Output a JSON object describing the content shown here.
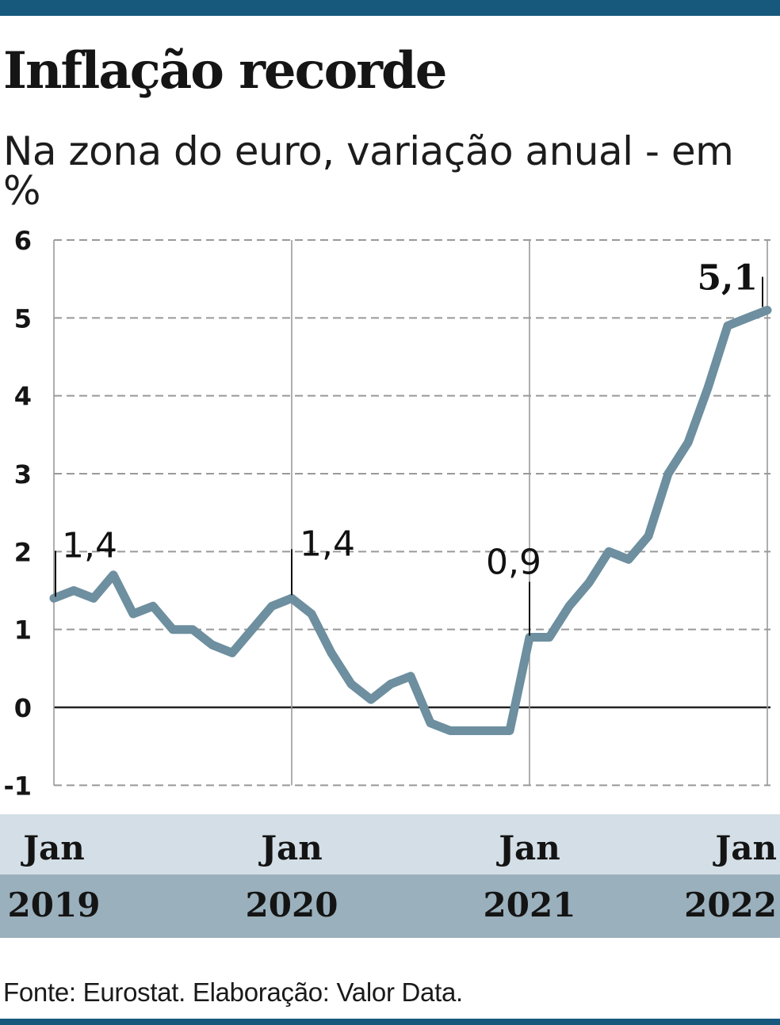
{
  "header": {
    "title": "Inflação recorde",
    "subtitle": "Na zona do euro, variação anual - em %"
  },
  "footer": {
    "source": "Fonte: Eurostat. Elaboração: Valor Data."
  },
  "colors": {
    "rule": "#17587d",
    "line": "#6d8f9f",
    "month_band": "#d3dee6",
    "year_band": "#9ab0bc",
    "grid": "#999999",
    "zero_line": "#222222"
  },
  "chart_data": {
    "type": "line",
    "title": "Inflação recorde",
    "subtitle": "Na zona do euro, variação anual - em %",
    "xlabel": "",
    "ylabel": "",
    "ylim": [
      -1,
      6
    ],
    "yticks": [
      -1,
      0,
      1,
      2,
      3,
      4,
      5,
      6
    ],
    "ytick_labels": [
      "-1",
      "0",
      "1",
      "2",
      "3",
      "4",
      "5",
      "6"
    ],
    "xlim": [
      "2019-01",
      "2022-01"
    ],
    "x_ticks": [
      {
        "month": "Jan",
        "year": "2019"
      },
      {
        "month": "Jan",
        "year": "2020"
      },
      {
        "month": "Jan",
        "year": "2021"
      },
      {
        "month": "Jan",
        "year": "2022"
      }
    ],
    "grid": true,
    "x": [
      "2019-01",
      "2019-02",
      "2019-03",
      "2019-04",
      "2019-05",
      "2019-06",
      "2019-07",
      "2019-08",
      "2019-09",
      "2019-10",
      "2019-11",
      "2019-12",
      "2020-01",
      "2020-02",
      "2020-03",
      "2020-04",
      "2020-05",
      "2020-06",
      "2020-07",
      "2020-08",
      "2020-09",
      "2020-10",
      "2020-11",
      "2020-12",
      "2021-01",
      "2021-02",
      "2021-03",
      "2021-04",
      "2021-05",
      "2021-06",
      "2021-07",
      "2021-08",
      "2021-09",
      "2021-10",
      "2021-11",
      "2021-12",
      "2022-01"
    ],
    "series": [
      {
        "values": [
          1.4,
          1.5,
          1.4,
          1.7,
          1.2,
          1.3,
          1.0,
          1.0,
          0.8,
          0.7,
          1.0,
          1.3,
          1.4,
          1.2,
          0.7,
          0.3,
          0.1,
          0.3,
          0.4,
          -0.2,
          -0.3,
          -0.3,
          -0.3,
          -0.3,
          0.9,
          0.9,
          1.3,
          1.6,
          2.0,
          1.9,
          2.2,
          3.0,
          3.4,
          4.1,
          4.9,
          5.0,
          5.1
        ],
        "color": "#6d8f9f"
      }
    ],
    "annotations": [
      {
        "x": "2019-01",
        "y": 1.4,
        "text": "1,4",
        "bold": false
      },
      {
        "x": "2020-01",
        "y": 1.4,
        "text": "1,4",
        "bold": false
      },
      {
        "x": "2021-01",
        "y": 0.9,
        "text": "0,9",
        "bold": false
      },
      {
        "x": "2022-01",
        "y": 5.1,
        "text": "5,1",
        "bold": true
      }
    ]
  }
}
